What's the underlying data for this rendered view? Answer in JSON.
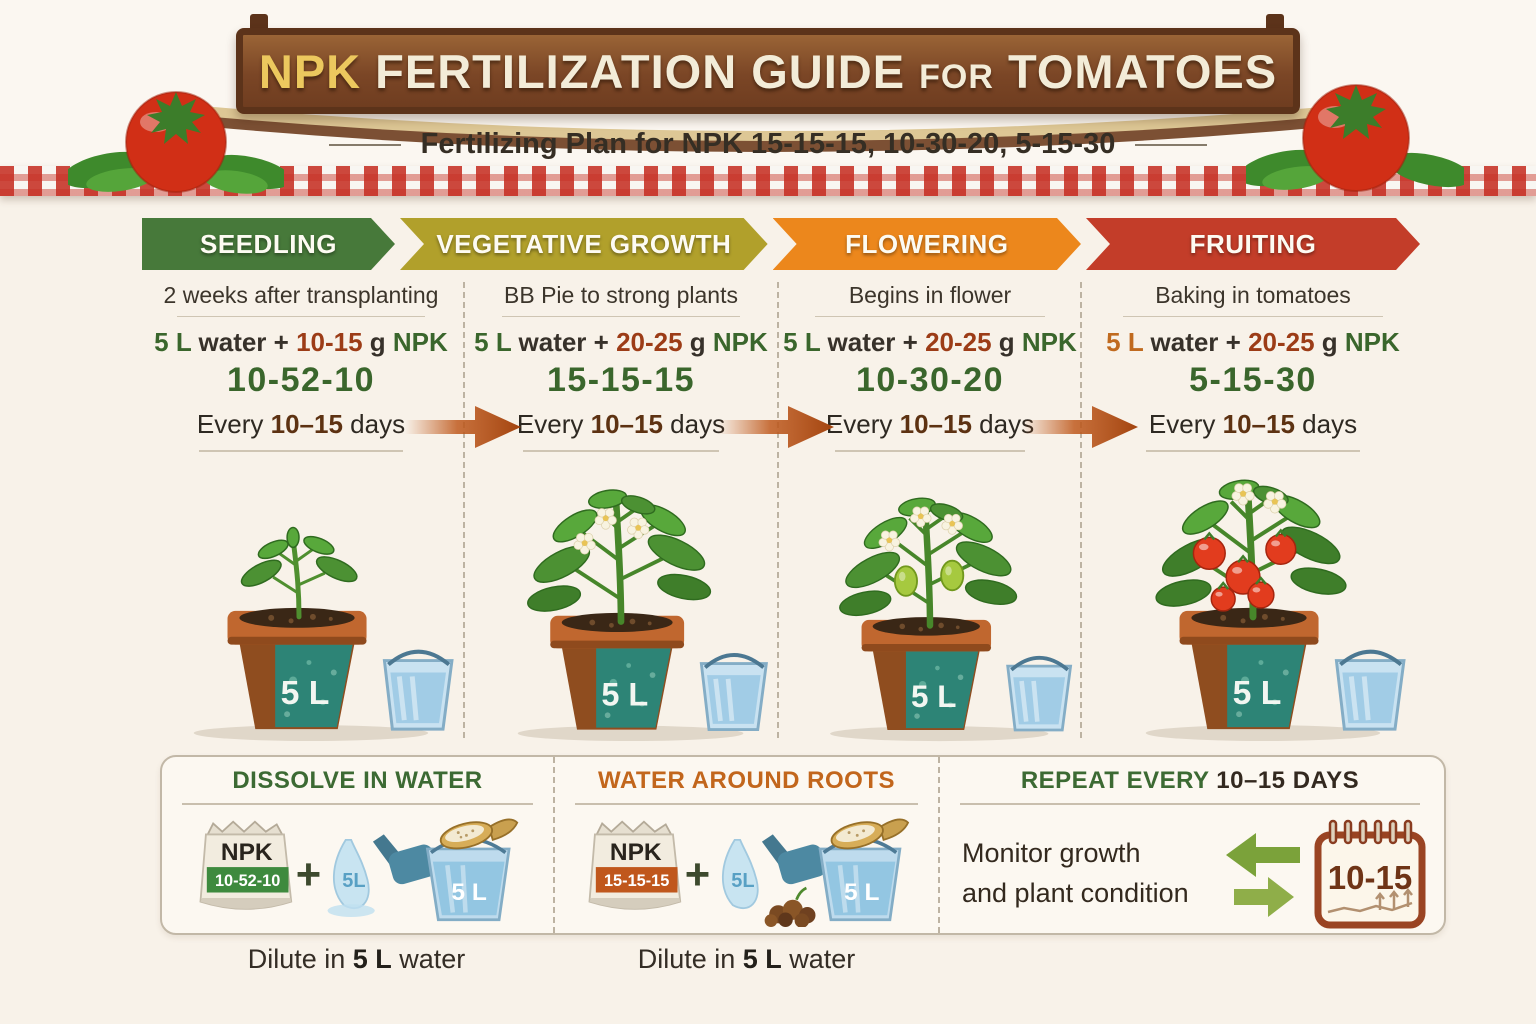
{
  "colors": {
    "seedling": "#47793a",
    "vegetative": "#b1a02b",
    "flowering": "#ec871c",
    "fruiting": "#c33d29",
    "npk_green": "#3a662c",
    "dose_rust": "#9c3c17",
    "bag_band_green": "#3e8a3e",
    "bag_band_orange": "#c0571c"
  },
  "header": {
    "title_npk": "NPK",
    "title_rest": " FERTILIZATION GUIDE ",
    "title_for": "FOR",
    "title_tomatoes": " TOMATOES",
    "subtitle": "Fertilizing Plan for NPK 15-15-15, 10-30-20, 5-15-30"
  },
  "stages": [
    {
      "name": "SEEDLING",
      "caption": "2 weeks after transplanting",
      "dose": {
        "vol": "5 L",
        "mid": " water + ",
        "amount": "10-15",
        "unit": " g ",
        "npk": "NPK"
      },
      "ratio": "10-52-10",
      "every": {
        "pre": "Every ",
        "num": "10–15",
        "post": " days"
      },
      "pot_label": "5 L",
      "plant": "seedling"
    },
    {
      "name": "VEGETATIVE GROWTH",
      "caption": "BB Pie to strong plants",
      "dose": {
        "vol": "5 L",
        "mid": " water + ",
        "amount": "20-25",
        "unit": " g ",
        "npk": "NPK"
      },
      "ratio": "15-15-15",
      "every": {
        "pre": "Every ",
        "num": "10–15",
        "post": " days"
      },
      "pot_label": "5 L",
      "plant": "vegetative"
    },
    {
      "name": "FLOWERING",
      "caption": "Begins in flower",
      "dose": {
        "vol": "5 L",
        "mid": " water + ",
        "amount": "20-25",
        "unit": " g ",
        "npk": "NPK"
      },
      "ratio": "10-30-20",
      "every": {
        "pre": "Every ",
        "num": "10–15",
        "post": " days"
      },
      "pot_label": "5 L",
      "plant": "flowering"
    },
    {
      "name": "FRUITING",
      "caption": "Baking in tomatoes",
      "dose": {
        "vol": "5 L",
        "mid": " water + ",
        "amount": "20-25",
        "unit": " g ",
        "npk": "NPK"
      },
      "ratio": "5-15-30",
      "every": {
        "pre": "Every ",
        "num": "10–15",
        "post": " days"
      },
      "pot_label": "5 L",
      "plant": "fruiting"
    }
  ],
  "panels": [
    {
      "heading": "DISSOLVE IN WATER",
      "bag_title": "NPK",
      "bag_ratio": "10-52-10",
      "plus": "+",
      "pour_label": "5L",
      "bucket_label": "5 L",
      "caption": {
        "pre": "Dilute in ",
        "bold": "5 L",
        "post": " water"
      }
    },
    {
      "heading": "WATER AROUND ROOTS",
      "bag_title": "NPK",
      "bag_ratio": "15-15-15",
      "plus": "+",
      "pour_label": "5L",
      "bucket_label": "5 L",
      "caption": {
        "pre": "Dilute in ",
        "bold": "5 L",
        "post": " water"
      }
    },
    {
      "heading_pre": "REPEAT EVERY ",
      "heading_em": "10–15 DAYS",
      "monitor1": "Monitor growth",
      "monitor2": "and plant condition",
      "calendar": "10-15"
    }
  ]
}
